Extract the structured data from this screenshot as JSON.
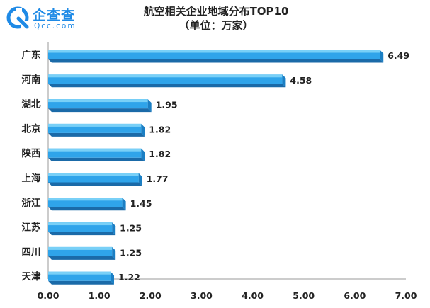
{
  "brand": {
    "name_cn": "企查查",
    "name_en": "Qcc.com",
    "logo": "qcc-logo-icon",
    "color": "#1e8ae6"
  },
  "colors": {
    "bar_top": "#79d0f7",
    "bar_front": "#2fa4ea",
    "bar_side": "#1b7fc4",
    "bar_bottom": "#1a6aa8",
    "axis": "#9a9a9a"
  },
  "chart_data": {
    "type": "bar",
    "orientation": "horizontal",
    "title": "航空相关企业地域分布TOP10",
    "subtitle": "（单位：万家）",
    "categories": [
      "广东",
      "河南",
      "湖北",
      "北京",
      "陕西",
      "上海",
      "浙江",
      "江苏",
      "四川",
      "天津"
    ],
    "values": [
      6.49,
      4.58,
      1.95,
      1.82,
      1.82,
      1.77,
      1.45,
      1.25,
      1.25,
      1.22
    ],
    "value_labels": [
      "6.49",
      "4.58",
      "1.95",
      "1.82",
      "1.82",
      "1.77",
      "1.45",
      "1.25",
      "1.25",
      "1.22"
    ],
    "xlim": [
      0,
      7
    ],
    "x_ticks": [
      0,
      1,
      2,
      3,
      4,
      5,
      6,
      7
    ],
    "x_tick_labels": [
      "0.00",
      "1.00",
      "2.00",
      "3.00",
      "4.00",
      "5.00",
      "6.00",
      "7.00"
    ],
    "grid": false,
    "legend": "none"
  }
}
